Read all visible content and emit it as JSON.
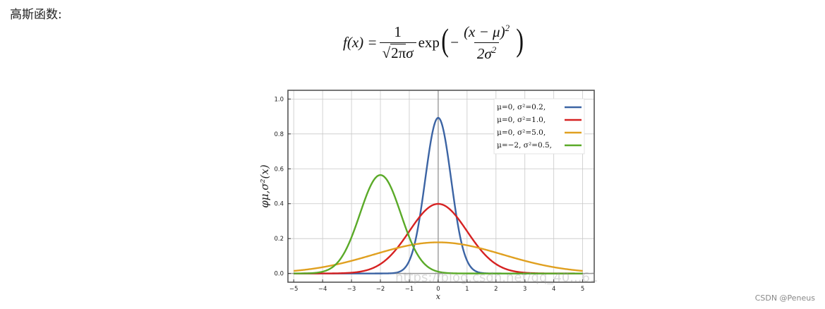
{
  "heading": "高斯函数:",
  "formula": {
    "lhs": "f(x) =",
    "frac1_num": "1",
    "frac1_den_prefix": "√",
    "frac1_den_radicand": "2π",
    "frac1_den_suffix": "σ",
    "exp": "exp",
    "minus": "−",
    "frac2_num": "(x − μ)",
    "frac2_num_sup": "2",
    "frac2_den": "2σ",
    "frac2_den_sup": "2"
  },
  "chart_data": {
    "type": "line",
    "xlabel": "x",
    "ylabel": "φμ,σ²(x)",
    "xlim": [
      -5.2,
      5.4
    ],
    "ylim": [
      -0.05,
      1.05
    ],
    "xticks": [
      -5,
      -4,
      -3,
      -2,
      -1,
      0,
      1,
      2,
      3,
      4,
      5
    ],
    "yticks": [
      0.0,
      0.2,
      0.4,
      0.6,
      0.8,
      1.0
    ],
    "grid": true,
    "legend_position": "top-right",
    "series": [
      {
        "name": "μ=0,   σ²=0.2,",
        "mu": 0,
        "variance": 0.2,
        "color": "#3c64a4"
      },
      {
        "name": "μ=0,   σ²=1.0,",
        "mu": 0,
        "variance": 1.0,
        "color": "#d62222"
      },
      {
        "name": "μ=0,   σ²=5.0,",
        "mu": 0,
        "variance": 5.0,
        "color": "#e0a020"
      },
      {
        "name": "μ=−2,  σ²=0.5,",
        "mu": -2,
        "variance": 0.5,
        "color": "#5aaa28"
      }
    ]
  },
  "watermark": "https://blog.csdn.net/qq_40...61",
  "credit": "CSDN @Peneus"
}
